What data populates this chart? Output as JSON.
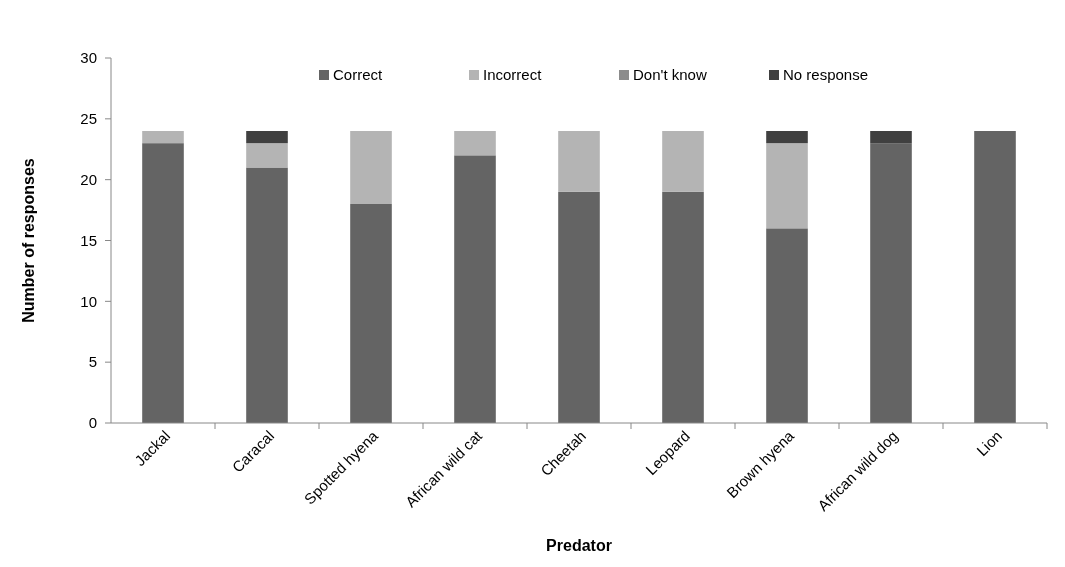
{
  "chart_data": {
    "type": "bar",
    "stacked": true,
    "xlabel": "Predator",
    "ylabel": "Number of responses",
    "categories": [
      "Jackal",
      "Caracal",
      "Spotted hyena",
      "African wild cat",
      "Cheetah",
      "Leopard",
      "Brown hyena",
      "African wild dog",
      "Lion"
    ],
    "series": [
      {
        "name": "Correct",
        "color": "#646464",
        "values": [
          23,
          21,
          18,
          22,
          19,
          19,
          16,
          23,
          24
        ]
      },
      {
        "name": "Incorrect",
        "color": "#b4b4b4",
        "values": [
          1,
          2,
          6,
          2,
          5,
          5,
          7,
          0,
          0
        ]
      },
      {
        "name": "Don't know",
        "color": "#8c8c8c",
        "values": [
          0,
          0,
          0,
          0,
          0,
          0,
          0,
          0,
          0
        ]
      },
      {
        "name": "No response",
        "color": "#404040",
        "values": [
          0,
          1,
          0,
          0,
          0,
          0,
          1,
          1,
          0
        ]
      }
    ],
    "ylim": [
      0,
      30
    ],
    "yticks": [
      0,
      5,
      10,
      15,
      20,
      25,
      30
    ],
    "grid": false,
    "legend": "top"
  }
}
